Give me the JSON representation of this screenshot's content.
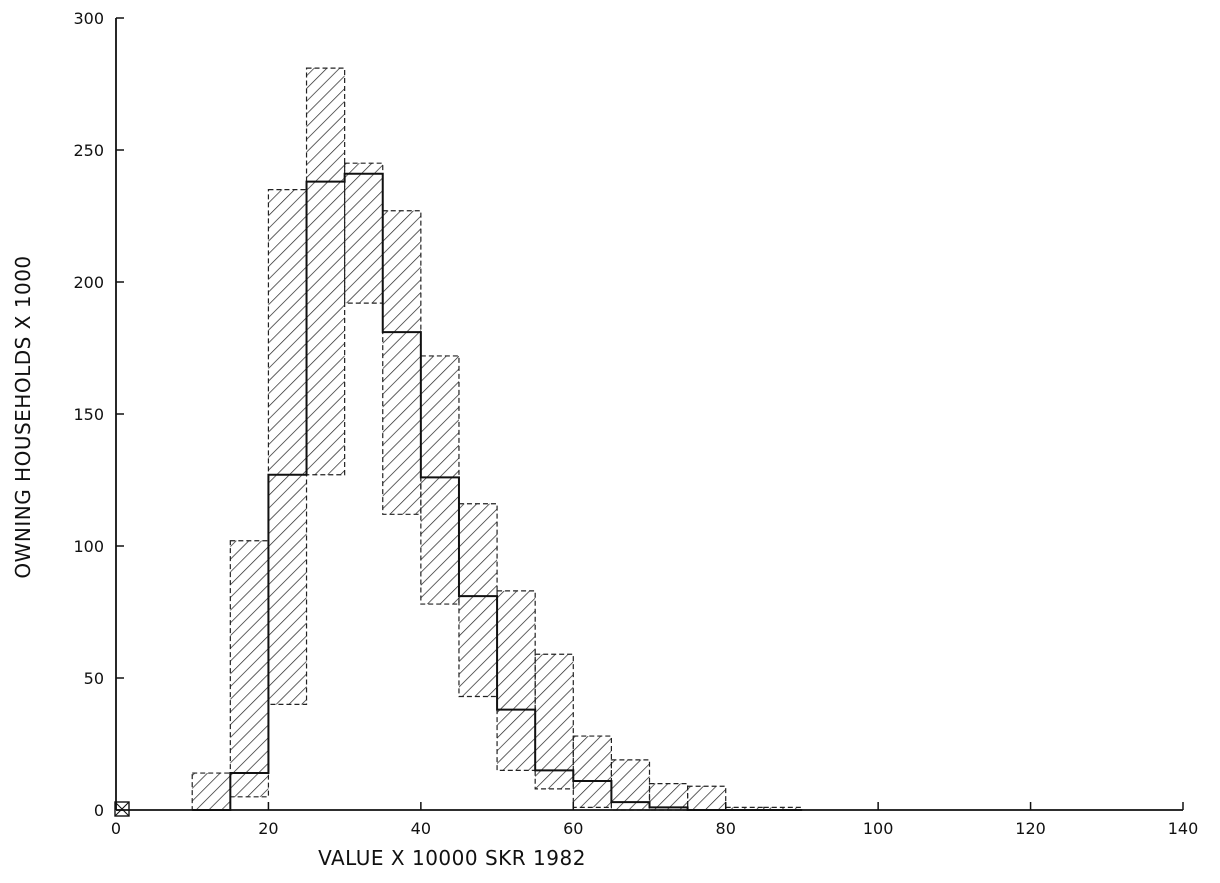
{
  "chart_data": {
    "type": "bar",
    "title": "",
    "xlabel": "VALUE X 10000 SKR 1982",
    "ylabel": "OWNING HOUSEHOLDS X 1000",
    "xlim": [
      0,
      140
    ],
    "ylim": [
      0,
      300
    ],
    "xticks": [
      0,
      20,
      40,
      60,
      80,
      100,
      120,
      140
    ],
    "yticks": [
      0,
      50,
      100,
      150,
      200,
      250,
      300
    ],
    "grid": false,
    "bin_width": 5,
    "bins": [
      {
        "x0": 10,
        "x1": 15,
        "value": 0,
        "lower": 0,
        "upper": 14
      },
      {
        "x0": 15,
        "x1": 20,
        "value": 14,
        "lower": 5,
        "upper": 102
      },
      {
        "x0": 20,
        "x1": 25,
        "value": 127,
        "lower": 40,
        "upper": 235
      },
      {
        "x0": 25,
        "x1": 30,
        "value": 238,
        "lower": 127,
        "upper": 281
      },
      {
        "x0": 30,
        "x1": 35,
        "value": 241,
        "lower": 192,
        "upper": 245
      },
      {
        "x0": 35,
        "x1": 40,
        "value": 181,
        "lower": 112,
        "upper": 227
      },
      {
        "x0": 40,
        "x1": 45,
        "value": 126,
        "lower": 78,
        "upper": 172
      },
      {
        "x0": 45,
        "x1": 50,
        "value": 81,
        "lower": 43,
        "upper": 116
      },
      {
        "x0": 50,
        "x1": 55,
        "value": 38,
        "lower": 15,
        "upper": 83
      },
      {
        "x0": 55,
        "x1": 60,
        "value": 15,
        "lower": 8,
        "upper": 59
      },
      {
        "x0": 60,
        "x1": 65,
        "value": 11,
        "lower": 1,
        "upper": 28
      },
      {
        "x0": 65,
        "x1": 70,
        "value": 3,
        "lower": 0,
        "upper": 19
      },
      {
        "x0": 70,
        "x1": 75,
        "value": 1,
        "lower": 0,
        "upper": 10
      },
      {
        "x0": 75,
        "x1": 80,
        "value": 0,
        "lower": 0,
        "upper": 9
      },
      {
        "x0": 80,
        "x1": 85,
        "value": 0,
        "lower": 0,
        "upper": 1
      },
      {
        "x0": 85,
        "x1": 90,
        "value": 0,
        "lower": 0,
        "upper": 1
      }
    ],
    "zero_marker_x": 0,
    "colors": {
      "line": "#111111",
      "band_hatch": "#222222",
      "axis": "#111111"
    }
  }
}
